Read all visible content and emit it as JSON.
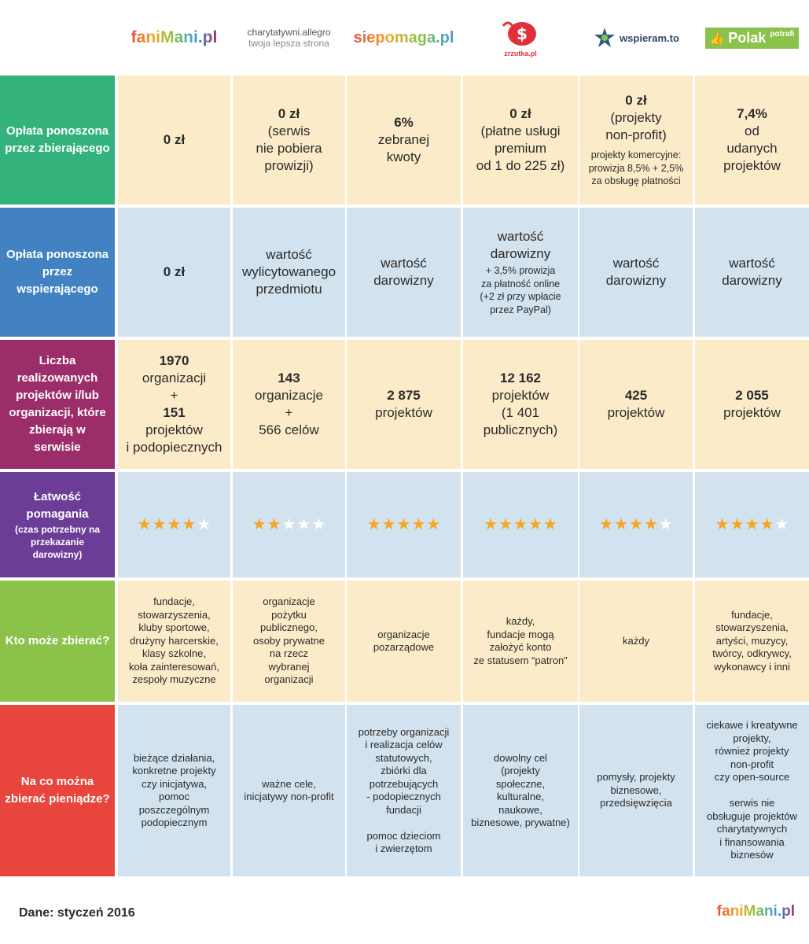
{
  "logos": [
    {
      "text": "faniMani.pl"
    },
    {
      "line1": "charytatywni.allegro",
      "line2": "twoja lepsza strona"
    },
    {
      "text": "siepomaga.pl"
    },
    {
      "text": "zrzutka.pl"
    },
    {
      "text": "wspieram.to"
    },
    {
      "main": "Polak",
      "sup": "potrafi"
    }
  ],
  "colors": {
    "row1": "#33b37b",
    "row2": "#4282c2",
    "row3": "#9b2d6a",
    "row4": "#6b3d97",
    "row5": "#8bc34a",
    "row6": "#e8453c",
    "cream": "#fcebc8",
    "blue": "#d2e2ee",
    "star_on": "#f5a623",
    "star_off": "#ffffff"
  },
  "rows": [
    {
      "header": "Opłata ponoszona przez zbierającego",
      "cells": [
        {
          "bold": "0 zł",
          "rest": "",
          "small": ""
        },
        {
          "bold": "0 zł",
          "rest": "(serwis\nnie pobiera\nprowizji)",
          "small": ""
        },
        {
          "bold": "6%",
          "rest": "zebranej\nkwoty",
          "small": ""
        },
        {
          "bold": "0 zł",
          "rest": "(płatne usługi\npremium\nod 1 do 225 zł)",
          "small": ""
        },
        {
          "bold": "0 zł",
          "rest": "(projekty\nnon-profit)",
          "small": "projekty komercyjne:\nprowizja 8,5% + 2,5%\nza obsługę płatności"
        },
        {
          "bold": "7,4%",
          "rest": "od\nudanych\nprojektów",
          "small": ""
        }
      ]
    },
    {
      "header": "Opłata ponoszona przez wspierającego",
      "cells": [
        {
          "bold": "0 zł",
          "rest": "",
          "small": ""
        },
        {
          "bold": "",
          "rest": "wartość\nwylicytowanego\nprzedmiotu",
          "small": ""
        },
        {
          "bold": "",
          "rest": "wartość\ndarowizny",
          "small": ""
        },
        {
          "bold": "",
          "rest": "wartość\ndarowizny",
          "small": "+ 3,5% prowizja\nza płatność online\n(+2 zł przy wpłacie\nprzez PayPal)"
        },
        {
          "bold": "",
          "rest": "wartość\ndarowizny",
          "small": ""
        },
        {
          "bold": "",
          "rest": "wartość\ndarowizny",
          "small": ""
        }
      ]
    },
    {
      "header": "Liczba realizowanych projektów i/lub organizacji, które zbierają w serwisie",
      "cells": [
        {
          "parts": [
            [
              "1970",
              true
            ],
            [
              "organizacji",
              false
            ],
            [
              "+",
              false
            ],
            [
              "151",
              true
            ],
            [
              "projektów",
              false
            ],
            [
              "i podopiecznych",
              false
            ]
          ]
        },
        {
          "parts": [
            [
              "143",
              true
            ],
            [
              "organizacje",
              false
            ],
            [
              "+",
              false
            ],
            [
              "566  celów",
              false
            ]
          ]
        },
        {
          "parts": [
            [
              "2 875",
              true
            ],
            [
              "projektów",
              false
            ]
          ]
        },
        {
          "parts": [
            [
              "12 162",
              true
            ],
            [
              "projektów",
              false
            ],
            [
              "(1 401",
              false
            ],
            [
              "publicznych)",
              false
            ]
          ]
        },
        {
          "parts": [
            [
              "425",
              true
            ],
            [
              "projektów",
              false
            ]
          ]
        },
        {
          "parts": [
            [
              "2 055",
              true
            ],
            [
              "projektów",
              false
            ]
          ]
        }
      ]
    },
    {
      "header": "Łatwość pomagania",
      "header_small": "(czas potrzebny na przekazanie darowizny)",
      "ratings": [
        4,
        2,
        5,
        5,
        4,
        4
      ],
      "max_rating": 5
    },
    {
      "header": "Kto może zbierać?",
      "cells": [
        "fundacje,\nstowarzyszenia,\nkluby sportowe,\ndrużyny harcerskie,\nklasy szkolne,\nkoła zainteresowań,\nzespoły muzyczne",
        "organizacje\npożytku\npublicznego,\nosoby prywatne\nna rzecz\nwybranej\norganizacji",
        "organizacje\npozarządowe",
        "każdy,\nfundacje mogą\nzałożyć konto\nze statusem “patron”",
        "każdy",
        "fundacje,\nstowarzyszenia,\nartyści, muzycy,\ntwórcy, odkrywcy,\nwykonawcy i inni"
      ]
    },
    {
      "header": "Na co można zbierać pieniądze?",
      "cells": [
        "bieżące działania,\nkonkretne projekty\nczy inicjatywa,\npomoc\nposzczególnym\npodopiecznym",
        "ważne cele,\ninicjatywy non-profit",
        "potrzeby organizacji\ni realizacja celów\nstatutowych,\nzbiórki dla\npotrzebujących\n- podopiecznych\nfundacji\n\npomoc dzieciom\ni zwierzętom",
        "dowolny cel\n(projekty\nspołeczne,\nkulturalne,\nnaukowe,\nbiznesowe, prywatne)",
        "pomysły, projekty\nbiznesowe,\nprzedsięwzięcia",
        "ciekawe i kreatywne\nprojekty,\nrównież projekty\nnon-profit\nczy open-source\n\nserwis nie\nobsługuje projektów\ncharytatywnych\ni finansowania\nbiznesów"
      ]
    }
  ],
  "footer": {
    "date_label": "Dane: styczeń 2016",
    "logo": "faniMani.pl"
  }
}
